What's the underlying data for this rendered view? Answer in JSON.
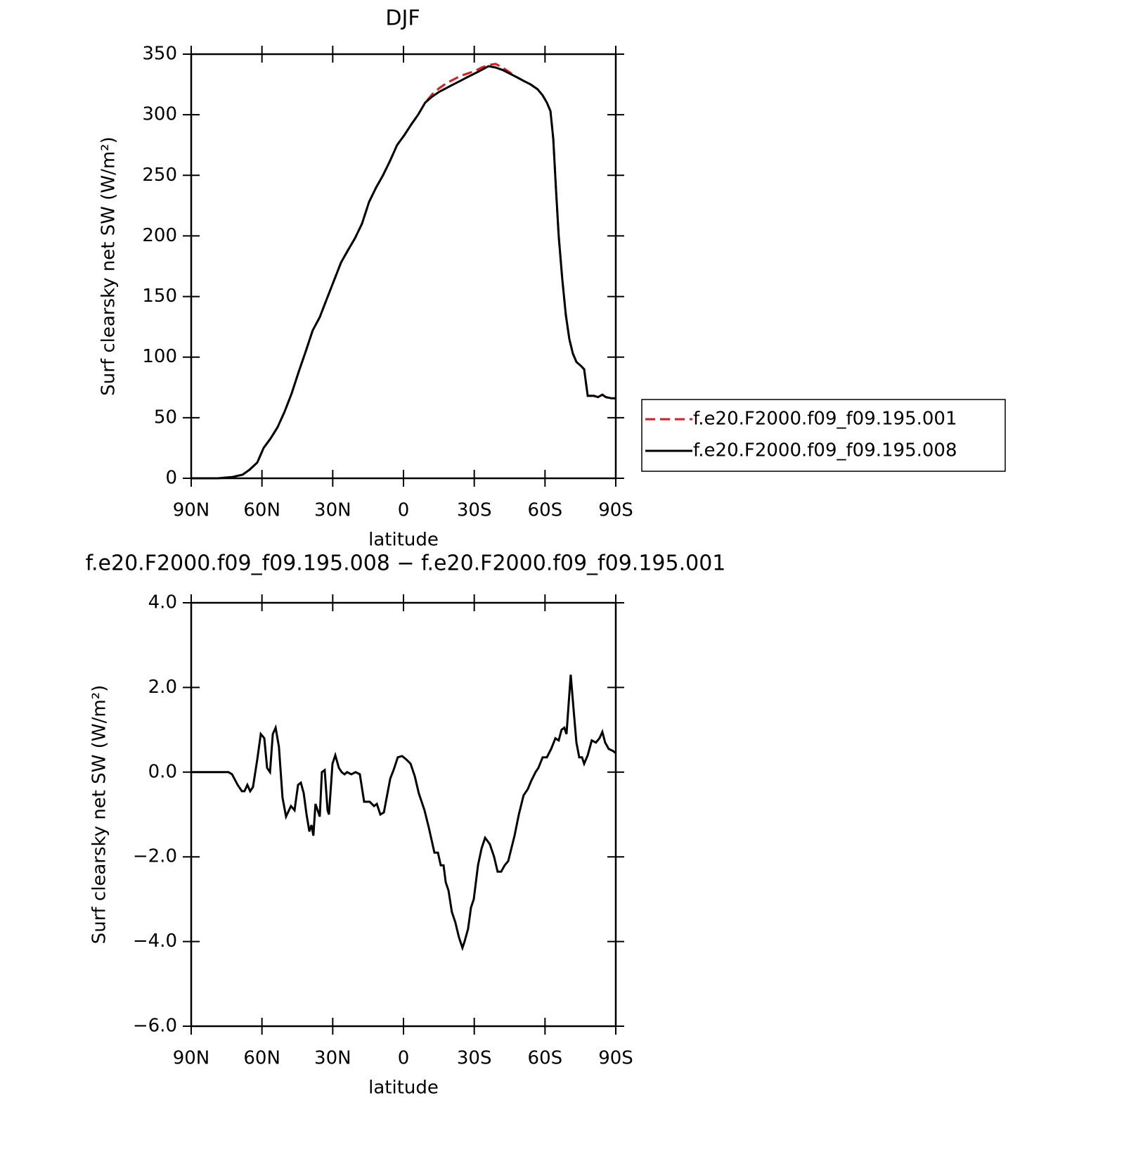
{
  "chart_data": [
    {
      "type": "line",
      "title": "DJF",
      "x_label": "latitude",
      "y_label": "Surf clearsky net SW (W/m²)",
      "xlim": [
        90,
        -90
      ],
      "xticks": [
        {
          "value": 90,
          "label": "90N"
        },
        {
          "value": 60,
          "label": "60N"
        },
        {
          "value": 30,
          "label": "30N"
        },
        0,
        {
          "value": -30,
          "label": "30S"
        },
        {
          "value": -60,
          "label": "60S"
        },
        {
          "value": -90,
          "label": "90S"
        }
      ],
      "ylim": [
        0,
        350
      ],
      "yticks": [
        0,
        50,
        100,
        150,
        200,
        250,
        300,
        350
      ],
      "legend": "right",
      "x": [
        90,
        78.7,
        72.7,
        68.2,
        65.3,
        62,
        59.3,
        56.3,
        53.4,
        50.4,
        47.4,
        44.4,
        41.4,
        38.5,
        35.5,
        32.5,
        29.5,
        26.5,
        23.6,
        20.6,
        17.6,
        14.6,
        11.6,
        8.7,
        5.7,
        2.7,
        -0.3,
        -3.3,
        -6.2,
        -9.2,
        -12.2,
        -15.2,
        -18.2,
        -21.1,
        -24.1,
        -27.1,
        -30.1,
        -33.1,
        -36,
        -39,
        -42,
        -45,
        -48,
        -50.9,
        -53.9,
        -56.9,
        -59,
        -60.8,
        -62.3,
        -63.5,
        -64.6,
        -65.8,
        -67.3,
        -68.8,
        -70.3,
        -71.8,
        -73.3,
        -75.1,
        -76.6,
        -78.1,
        -80.7,
        -82.5,
        -84.3,
        -85.8,
        -88.2,
        -90
      ],
      "series": [
        {
          "name": "f.e20.F2000.f09_f09.195.001",
          "color": "#e8161b",
          "line_style": "dashed",
          "values": [
            0,
            0,
            1,
            3,
            7,
            13,
            25,
            33,
            42,
            55,
            70,
            88,
            105,
            122,
            133,
            148,
            163,
            178,
            188,
            198,
            210,
            228,
            240,
            250,
            262,
            275,
            283,
            292,
            300,
            310,
            317,
            322,
            326,
            329,
            332,
            334,
            336,
            339,
            341,
            342,
            339,
            335,
            331,
            328,
            325,
            321,
            316,
            310,
            303,
            280,
            240,
            200,
            165,
            135,
            115,
            103,
            96,
            93,
            90,
            68,
            68,
            67,
            69,
            67,
            66,
            66
          ]
        },
        {
          "name": "f.e20.F2000.f09_f09.195.008",
          "color": "#000000",
          "line_style": "solid",
          "values": [
            0,
            0,
            1,
            3,
            7,
            13,
            25,
            33,
            42,
            55,
            70,
            88,
            105,
            122,
            133,
            148,
            163,
            178,
            188,
            198,
            210,
            228,
            240,
            250,
            262,
            275,
            283,
            292,
            300,
            310,
            315,
            319,
            322,
            325,
            328,
            331,
            334,
            337,
            340,
            339,
            337,
            334,
            331,
            328,
            325,
            321,
            316,
            310,
            303,
            280,
            240,
            200,
            165,
            135,
            115,
            103,
            96,
            93,
            90,
            68,
            68,
            67,
            69,
            67,
            66,
            66
          ]
        }
      ]
    },
    {
      "type": "line",
      "title": "f.e20.F2000.f09_f09.195.008 − f.e20.F2000.f09_f09.195.001",
      "x_label": "latitude",
      "y_label": "Surf clearsky net SW (W/m²)",
      "xlim": [
        90,
        -90
      ],
      "xticks": [
        {
          "value": 90,
          "label": "90N"
        },
        {
          "value": 60,
          "label": "60N"
        },
        {
          "value": 30,
          "label": "30N"
        },
        0,
        {
          "value": -30,
          "label": "30S"
        },
        {
          "value": -60,
          "label": "60S"
        },
        {
          "value": -90,
          "label": "90S"
        }
      ],
      "ylim": [
        -6,
        4
      ],
      "yticks": [
        {
          "value": -6,
          "label": "−6.0"
        },
        {
          "value": -4,
          "label": "−4.0"
        },
        {
          "value": -2,
          "label": "−2.0"
        },
        {
          "value": 0,
          "label": "0.0"
        },
        {
          "value": 2,
          "label": "2.0"
        },
        {
          "value": 4,
          "label": "4.0"
        }
      ],
      "x": [
        90,
        74.2,
        72.7,
        70.3,
        68.5,
        67.4,
        66.2,
        65,
        63.8,
        62,
        60.5,
        59,
        57.8,
        56.6,
        55.4,
        54.2,
        52.8,
        51.3,
        49.8,
        47.7,
        46.2,
        44.7,
        43.5,
        42.3,
        41.1,
        39.9,
        39,
        38.2,
        37.3,
        36.4,
        35.5,
        34.6,
        33.4,
        32.2,
        31.6,
        30.1,
        28.9,
        27.4,
        26.2,
        25,
        23.9,
        22.1,
        20.3,
        18.5,
        16.7,
        14.3,
        12.5,
        11.3,
        9.8,
        8.3,
        5.6,
        4.2,
        2.4,
        0.6,
        -1.2,
        -3,
        -4.8,
        -6.5,
        -8.9,
        -10.7,
        -13.1,
        -14.6,
        -15.8,
        -17,
        -17.9,
        -19.1,
        -20.5,
        -22,
        -23.5,
        -25,
        -25.9,
        -27.4,
        -28.6,
        -29.8,
        -31.6,
        -33.1,
        -34.6,
        -36.6,
        -38.4,
        -39.9,
        -41.4,
        -42.9,
        -44.4,
        -47.1,
        -48.9,
        -50.9,
        -52.7,
        -54.2,
        -56,
        -57.2,
        -59,
        -60.8,
        -62.6,
        -64.4,
        -65.8,
        -67,
        -68.2,
        -69.1,
        -70.9,
        -72.1,
        -73.3,
        -74.5,
        -75.7,
        -76.6,
        -78.1,
        -79.8,
        -81.6,
        -83.1,
        -84.3,
        -85.5,
        -87,
        -88.8,
        -90
      ],
      "series": [
        {
          "color": "#000000",
          "line_style": "solid",
          "values": [
            0,
            0,
            -0.05,
            -0.3,
            -0.45,
            -0.45,
            -0.3,
            -0.45,
            -0.35,
            0.3,
            0.9,
            0.8,
            0.1,
            0,
            0.9,
            1.05,
            0.6,
            -0.6,
            -1.05,
            -0.8,
            -0.9,
            -0.3,
            -0.25,
            -0.5,
            -1,
            -1.4,
            -1.25,
            -1.5,
            -0.75,
            -0.9,
            -1.05,
            0,
            0.05,
            -0.9,
            -1,
            0.2,
            0.4,
            0.1,
            0,
            -0.05,
            0,
            -0.05,
            0,
            -0.05,
            -0.7,
            -0.7,
            -0.8,
            -0.75,
            -1,
            -0.95,
            -0.15,
            0.05,
            0.35,
            0.38,
            0.3,
            0.2,
            -0.1,
            -0.5,
            -0.9,
            -1.3,
            -1.9,
            -1.9,
            -2.2,
            -2.2,
            -2.6,
            -2.8,
            -3.3,
            -3.55,
            -3.9,
            -4.15,
            -4,
            -3.7,
            -3.2,
            -3,
            -2.2,
            -1.8,
            -1.55,
            -1.7,
            -2,
            -2.35,
            -2.35,
            -2.2,
            -2.1,
            -1.5,
            -1,
            -0.55,
            -0.4,
            -0.2,
            0,
            0.1,
            0.35,
            0.35,
            0.55,
            0.8,
            0.75,
            1,
            1.05,
            0.9,
            2.3,
            1.5,
            0.7,
            0.35,
            0.35,
            0.2,
            0.4,
            0.75,
            0.7,
            0.8,
            0.95,
            0.7,
            0.55,
            0.5,
            0.45
          ]
        }
      ]
    }
  ]
}
